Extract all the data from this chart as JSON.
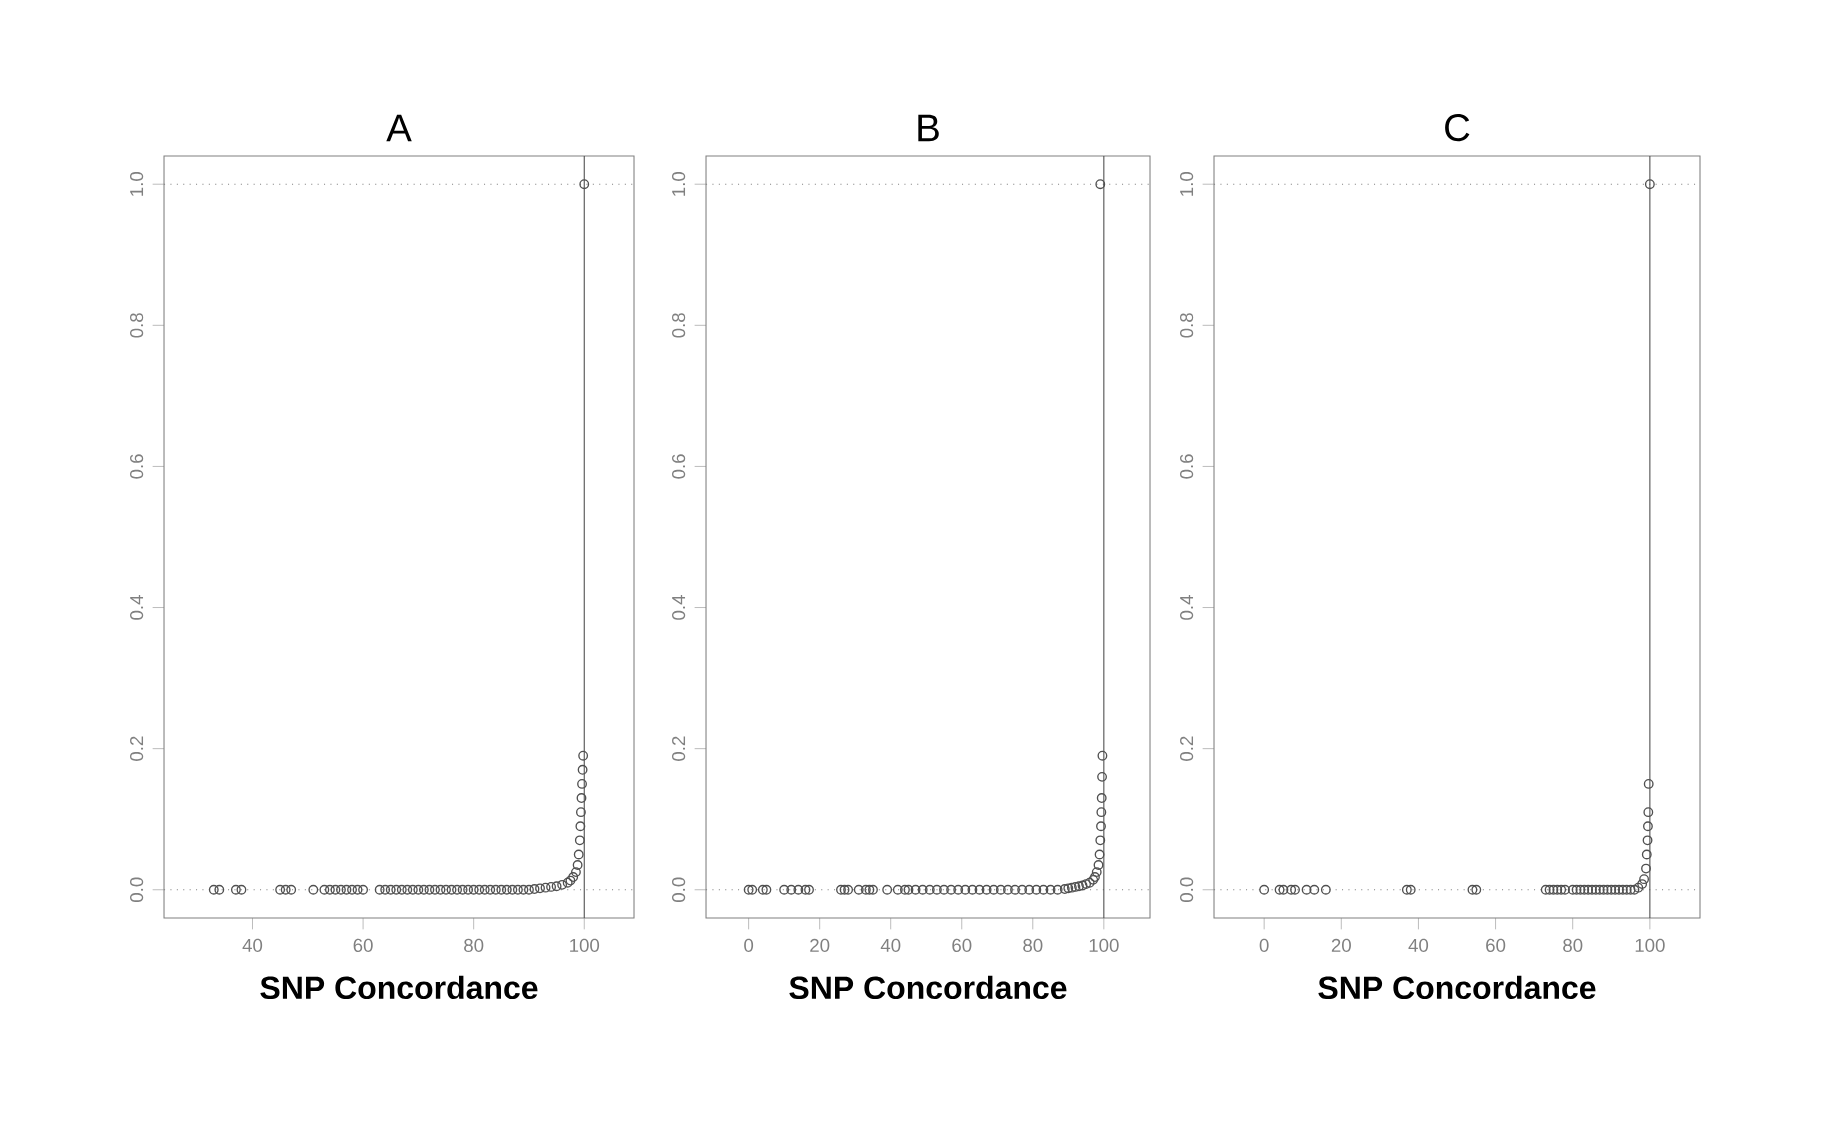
{
  "chart_data": [
    {
      "type": "scatter",
      "title": "A",
      "xlabel": "SNP Concordance",
      "marker": "circle",
      "color": "#505050",
      "x": [
        33,
        34,
        37,
        38,
        45,
        46,
        47,
        51,
        53,
        54,
        55,
        56,
        57,
        58,
        59,
        60,
        63,
        64,
        65,
        66,
        67,
        68,
        69,
        70,
        71,
        72,
        73,
        74,
        75,
        76,
        77,
        78,
        79,
        80,
        81,
        82,
        83,
        84,
        85,
        86,
        87,
        88,
        89,
        90,
        91,
        92,
        93,
        94,
        95,
        96,
        97,
        97.5,
        98,
        98.5,
        98.8,
        99,
        99.2,
        99.3,
        99.4,
        99.5,
        99.6,
        99.7,
        99.8,
        100
      ],
      "values": [
        0,
        0,
        0,
        0,
        0,
        0,
        0,
        0,
        0,
        0,
        0,
        0,
        0,
        0,
        0,
        0,
        0,
        0,
        0,
        0,
        0,
        0,
        0,
        0,
        0,
        0,
        0,
        0,
        0,
        0,
        0,
        0,
        0,
        0,
        0,
        0,
        0,
        0,
        0,
        0,
        0,
        0,
        0,
        0,
        0.001,
        0.002,
        0.003,
        0.004,
        0.005,
        0.007,
        0.01,
        0.013,
        0.018,
        0.025,
        0.035,
        0.05,
        0.07,
        0.09,
        0.11,
        0.13,
        0.15,
        0.17,
        0.19,
        1.0
      ],
      "xlim": [
        24,
        109
      ],
      "ylim": [
        -0.04,
        1.04
      ],
      "xticks": [
        40,
        60,
        80,
        100
      ],
      "yticks": [
        {
          "value": 0,
          "label": "0.0"
        },
        {
          "value": 0.2,
          "label": "0.2"
        },
        {
          "value": 0.4,
          "label": "0.4"
        },
        {
          "value": 0.6,
          "label": "0.6"
        },
        {
          "value": 0.8,
          "label": "0.8"
        },
        {
          "value": 1,
          "label": "1.0"
        }
      ],
      "ref_lines": [
        {
          "axis": "y",
          "value": 0,
          "line_style": "dotted"
        },
        {
          "axis": "y",
          "value": 1,
          "line_style": "dotted"
        },
        {
          "axis": "x",
          "value": 100,
          "line_style": "solid"
        }
      ]
    },
    {
      "type": "scatter",
      "title": "B",
      "xlabel": "SNP Concordance",
      "marker": "circle",
      "color": "#505050",
      "x": [
        0,
        1,
        4,
        5,
        10,
        12,
        14,
        16,
        17,
        26,
        27,
        28,
        31,
        33,
        34,
        35,
        39,
        42,
        44,
        45,
        47,
        49,
        51,
        53,
        55,
        57,
        59,
        61,
        63,
        65,
        67,
        69,
        71,
        73,
        75,
        77,
        79,
        81,
        83,
        85,
        87,
        89,
        90,
        91,
        92,
        93,
        94,
        95,
        96,
        97,
        97.5,
        98,
        98.5,
        98.8,
        99,
        99.2,
        99.3,
        99.4,
        99.5,
        99.6,
        99
      ],
      "values": [
        0,
        0,
        0,
        0,
        0,
        0,
        0,
        0,
        0,
        0,
        0,
        0,
        0,
        0,
        0,
        0,
        0,
        0,
        0,
        0,
        0,
        0,
        0,
        0,
        0,
        0,
        0,
        0,
        0,
        0,
        0,
        0,
        0,
        0,
        0,
        0,
        0,
        0,
        0,
        0,
        0,
        0.001,
        0.002,
        0.003,
        0.004,
        0.005,
        0.006,
        0.008,
        0.01,
        0.014,
        0.018,
        0.025,
        0.035,
        0.05,
        0.07,
        0.09,
        0.11,
        0.13,
        0.16,
        0.19,
        1.0
      ],
      "xlim": [
        -12,
        113
      ],
      "ylim": [
        -0.04,
        1.04
      ],
      "xticks": [
        0,
        20,
        40,
        60,
        80,
        100
      ],
      "yticks": [
        {
          "value": 0,
          "label": "0.0"
        },
        {
          "value": 0.2,
          "label": "0.2"
        },
        {
          "value": 0.4,
          "label": "0.4"
        },
        {
          "value": 0.6,
          "label": "0.6"
        },
        {
          "value": 0.8,
          "label": "0.8"
        },
        {
          "value": 1,
          "label": "1.0"
        }
      ],
      "ref_lines": [
        {
          "axis": "y",
          "value": 0,
          "line_style": "dotted"
        },
        {
          "axis": "y",
          "value": 1,
          "line_style": "dotted"
        },
        {
          "axis": "x",
          "value": 100,
          "line_style": "solid"
        }
      ]
    },
    {
      "type": "scatter",
      "title": "C",
      "xlabel": "SNP Concordance",
      "marker": "circle",
      "color": "#505050",
      "x": [
        0,
        4,
        5,
        7,
        8,
        11,
        13,
        16,
        37,
        38,
        54,
        55,
        73,
        74,
        75,
        76,
        77,
        78,
        80,
        81,
        82,
        83,
        84,
        85,
        86,
        87,
        88,
        89,
        90,
        91,
        92,
        93,
        94,
        95,
        96,
        97,
        98,
        98.5,
        99,
        99.2,
        99.4,
        99.5,
        99.6,
        99.7,
        100
      ],
      "values": [
        0,
        0,
        0,
        0,
        0,
        0,
        0,
        0,
        0,
        0,
        0,
        0,
        0,
        0,
        0,
        0,
        0,
        0,
        0,
        0,
        0,
        0,
        0,
        0,
        0,
        0,
        0,
        0,
        0,
        0,
        0,
        0,
        0,
        0,
        0,
        0.003,
        0.008,
        0.015,
        0.03,
        0.05,
        0.07,
        0.09,
        0.11,
        0.15,
        1.0
      ],
      "xlim": [
        -13,
        113
      ],
      "ylim": [
        -0.04,
        1.04
      ],
      "xticks": [
        0,
        20,
        40,
        60,
        80,
        100
      ],
      "yticks": [
        {
          "value": 0,
          "label": "0.0"
        },
        {
          "value": 0.2,
          "label": "0.2"
        },
        {
          "value": 0.4,
          "label": "0.4"
        },
        {
          "value": 0.6,
          "label": "0.6"
        },
        {
          "value": 0.8,
          "label": "0.8"
        },
        {
          "value": 1,
          "label": "1.0"
        }
      ],
      "ref_lines": [
        {
          "axis": "y",
          "value": 0,
          "line_style": "dotted"
        },
        {
          "axis": "y",
          "value": 1,
          "line_style": "dotted"
        },
        {
          "axis": "x",
          "value": 100,
          "line_style": "solid"
        }
      ]
    }
  ]
}
